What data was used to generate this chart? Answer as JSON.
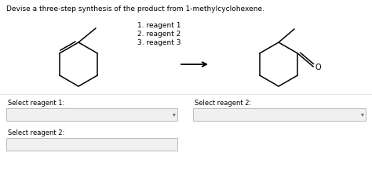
{
  "title": "Devise a three-step synthesis of the product from 1-methylcyclohexene.",
  "reagents_text": [
    "1. reagent 1",
    "2. reagent 2",
    "3. reagent 3"
  ],
  "select_label_1": "Select reagent 1:",
  "select_label_2_right": "Select reagent 2:",
  "select_label_2_bottom": "Select reagent 2:",
  "bg_color": "#ffffff",
  "text_color": "#000000",
  "box_facecolor": "#f0f0f0",
  "box_edgecolor": "#bbbbbb",
  "title_fontsize": 6.5,
  "label_fontsize": 6.0,
  "reagent_fontsize": 6.5,
  "mol_lw": 1.1
}
